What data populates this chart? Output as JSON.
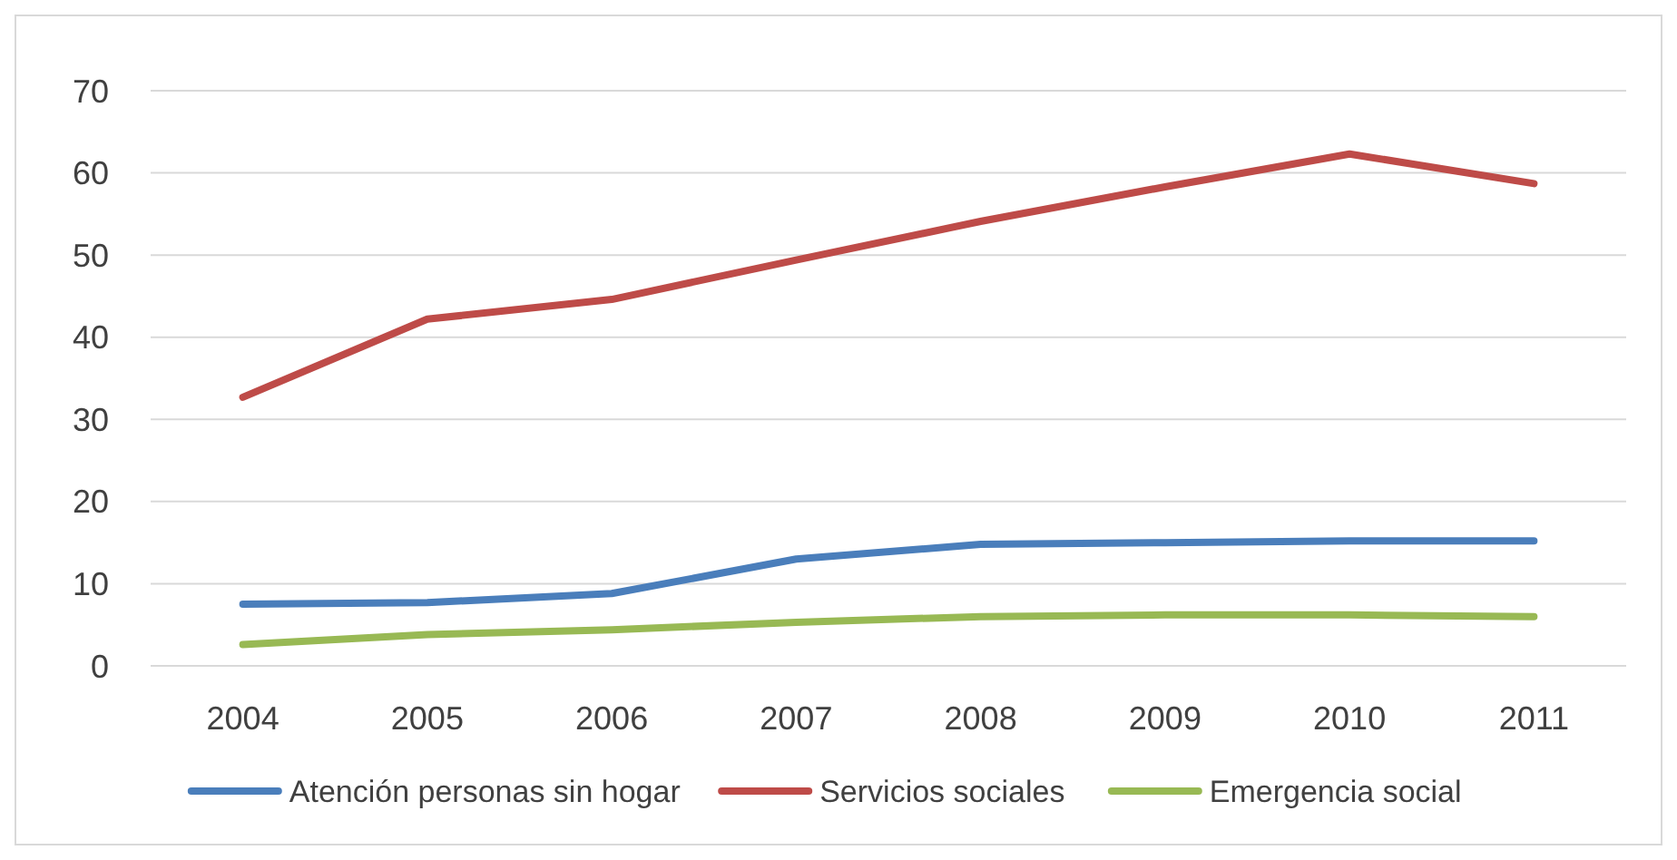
{
  "chart_data": {
    "type": "line",
    "categories": [
      "2004",
      "2005",
      "2006",
      "2007",
      "2008",
      "2009",
      "2010",
      "2011"
    ],
    "series": [
      {
        "name": "Atención personas sin hogar",
        "color": "#4a7ebb",
        "values": [
          7.5,
          7.7,
          8.8,
          13.0,
          14.8,
          15.0,
          15.2,
          15.2
        ]
      },
      {
        "name": "Servicios sociales",
        "color": "#be4b48",
        "values": [
          32.7,
          42.2,
          44.6,
          49.4,
          54.1,
          58.3,
          62.3,
          58.7
        ]
      },
      {
        "name": "Emergencia social",
        "color": "#98b954",
        "values": [
          2.6,
          3.8,
          4.4,
          5.3,
          6.0,
          6.2,
          6.2,
          6.0
        ]
      }
    ],
    "ylim": [
      0,
      70
    ],
    "yticks": [
      0,
      10,
      20,
      30,
      40,
      50,
      60,
      70
    ],
    "grid": "y",
    "legend": "bottom",
    "marker": "none",
    "line_style": "solid"
  }
}
